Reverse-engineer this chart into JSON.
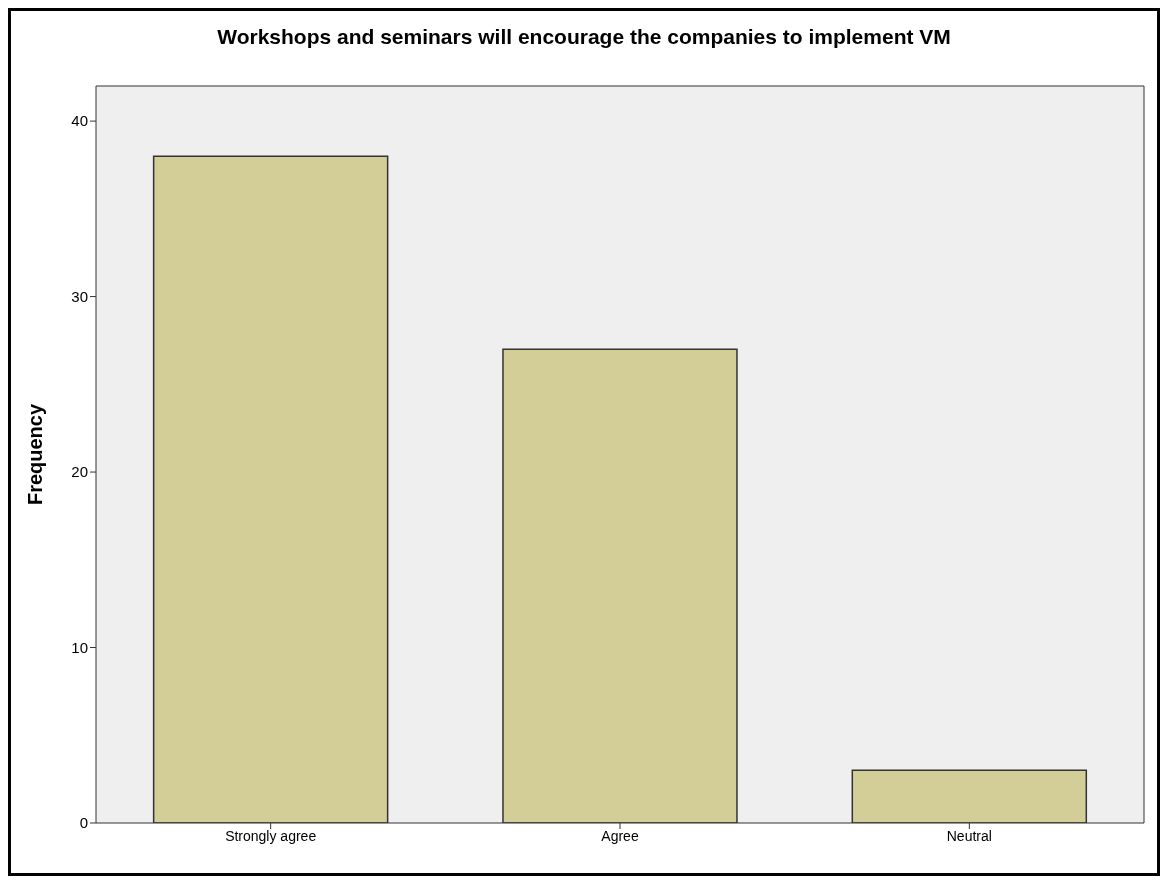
{
  "chart_data": {
    "type": "bar",
    "title": "Workshops and seminars will encourage the companies to implement VM",
    "ylabel": "Frequency",
    "categories": [
      "Strongly agree",
      "Agree",
      "Neutral"
    ],
    "values": [
      38,
      27,
      3
    ],
    "color": "#d3ce98",
    "ylim": [
      0,
      42
    ],
    "yticks": [
      0,
      10,
      20,
      30,
      40
    ]
  }
}
